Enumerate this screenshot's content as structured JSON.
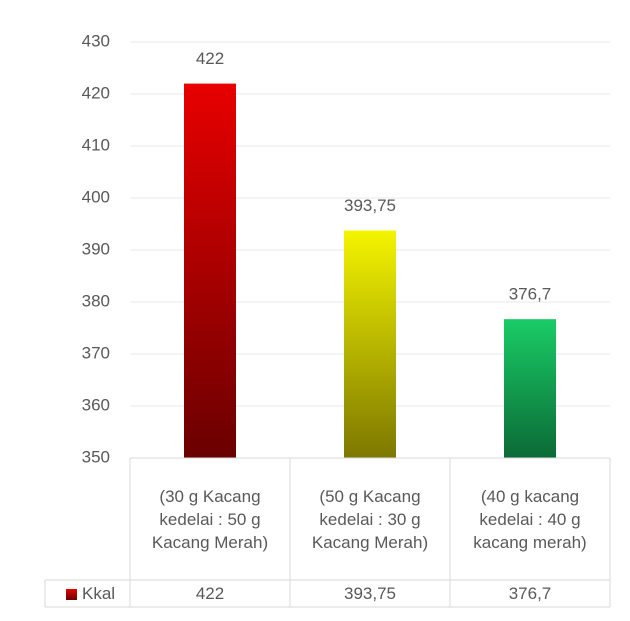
{
  "chart_data": {
    "type": "bar",
    "categories": [
      "(30 g Kacang kedelai : 50 g Kacang Merah)",
      "(50 g Kacang kedelai : 30 g Kacang Merah)",
      "(40 g kacang kedelai : 40 g kacang merah)"
    ],
    "series": [
      {
        "name": "Kkal",
        "values": [
          422,
          393.75,
          376.7
        ],
        "value_labels": [
          "422",
          "393,75",
          "376,7"
        ],
        "colors": [
          "#e80000",
          "#f4f400",
          "#1acc66"
        ],
        "colors_end": [
          "#6a0000",
          "#7d7800",
          "#0b6a36"
        ]
      }
    ],
    "ylim": [
      350,
      430
    ],
    "yticks": [
      350,
      360,
      370,
      380,
      390,
      400,
      410,
      420,
      430
    ],
    "grid": true
  }
}
